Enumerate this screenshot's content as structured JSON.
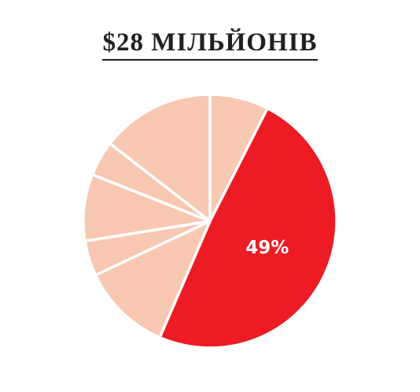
{
  "title": "$28 МІЛЬЙОНІВ",
  "colors": {
    "highlight": "#ed1c24",
    "other": "#f9c8b2",
    "separator": "#ffffff",
    "title_text": "#231f20"
  },
  "chart_data": {
    "type": "pie",
    "title": "$28 МІЛЬЙОНІВ",
    "start": "12 o'clock",
    "direction": "clockwise",
    "slices": [
      {
        "value": 7.5,
        "highlight": false,
        "label": ""
      },
      {
        "value": 49,
        "highlight": true,
        "label": "49%"
      },
      {
        "value": 11.5,
        "highlight": false,
        "label": ""
      },
      {
        "value": 4.5,
        "highlight": false,
        "label": ""
      },
      {
        "value": 8.5,
        "highlight": false,
        "label": ""
      },
      {
        "value": 4.5,
        "highlight": false,
        "label": ""
      },
      {
        "value": 14.5,
        "highlight": false,
        "label": ""
      }
    ]
  }
}
